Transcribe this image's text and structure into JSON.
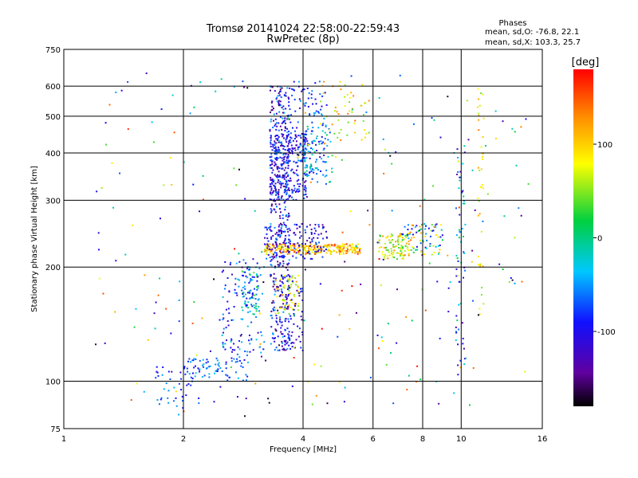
{
  "chart_data": {
    "type": "scatter",
    "title": "Tromsø 20141024 22:58:00-22:59:43",
    "subtitle": "RwPretec (8p)",
    "xlabel": "Frequency [MHz]",
    "ylabel": "Stationary phase Virtual Height [km]",
    "x_scale": "log",
    "y_scale": "log",
    "xlim": [
      1,
      16
    ],
    "ylim": [
      75,
      750
    ],
    "x_ticks": [
      1,
      2,
      4,
      6,
      8,
      10,
      16
    ],
    "y_ticks": [
      75,
      100,
      200,
      300,
      400,
      500,
      600,
      750
    ],
    "grid": true,
    "phase_stats": {
      "heading": "Phases",
      "o_line": "mean, sd,O: -76.8, 22.1",
      "x_line": "mean, sd,X: 103.3, 25.7"
    },
    "colorbar": {
      "label": "[deg]",
      "min": -180,
      "max": 180,
      "ticks": [
        100,
        0,
        -100
      ],
      "tick_labels": [
        "100",
        "0",
        "-100"
      ]
    },
    "clusters": [
      {
        "fmin": 1.7,
        "fmax": 2.2,
        "hmin": 85,
        "hmax": 110,
        "n": 40,
        "phase": [
          -110,
          -40
        ]
      },
      {
        "fmin": 2.0,
        "fmax": 2.9,
        "hmin": 100,
        "hmax": 115,
        "n": 70,
        "phase": [
          -100,
          -30
        ]
      },
      {
        "fmin": 2.5,
        "fmax": 3.2,
        "hmin": 112,
        "hmax": 210,
        "n": 130,
        "phase": [
          -130,
          -20
        ]
      },
      {
        "fmin": 2.8,
        "fmax": 3.1,
        "hmin": 150,
        "hmax": 200,
        "n": 60,
        "phase": [
          -100,
          40
        ]
      },
      {
        "fmin": 3.3,
        "fmax": 3.7,
        "hmin": 120,
        "hmax": 600,
        "n": 420,
        "phase": [
          -160,
          -40
        ]
      },
      {
        "fmin": 3.3,
        "fmax": 4.1,
        "hmin": 300,
        "hmax": 450,
        "n": 240,
        "phase": [
          -140,
          -60
        ]
      },
      {
        "fmin": 3.6,
        "fmax": 4.6,
        "hmin": 350,
        "hmax": 620,
        "n": 130,
        "phase": [
          -120,
          -40
        ]
      },
      {
        "fmin": 4.0,
        "fmax": 4.7,
        "hmin": 330,
        "hmax": 480,
        "n": 70,
        "phase": [
          -80,
          20
        ]
      },
      {
        "fmin": 3.2,
        "fmax": 5.6,
        "hmin": 216,
        "hmax": 230,
        "n": 260,
        "phase": [
          60,
          160
        ]
      },
      {
        "fmin": 3.2,
        "fmax": 4.6,
        "hmin": 210,
        "hmax": 260,
        "n": 140,
        "phase": [
          -150,
          -60
        ]
      },
      {
        "fmin": 3.4,
        "fmax": 3.9,
        "hmin": 150,
        "hmax": 190,
        "n": 60,
        "phase": [
          40,
          120
        ]
      },
      {
        "fmin": 3.6,
        "fmax": 4.0,
        "hmin": 120,
        "hmax": 190,
        "n": 60,
        "phase": [
          -130,
          -70
        ]
      },
      {
        "fmin": 6.2,
        "fmax": 7.4,
        "hmin": 210,
        "hmax": 245,
        "n": 90,
        "phase": [
          20,
          130
        ]
      },
      {
        "fmin": 7.0,
        "fmax": 9.0,
        "hmin": 215,
        "hmax": 260,
        "n": 90,
        "phase": [
          -120,
          140
        ]
      },
      {
        "fmin": 9.7,
        "fmax": 10.3,
        "hmin": 110,
        "hmax": 420,
        "n": 60,
        "phase": [
          -140,
          20
        ]
      },
      {
        "fmin": 11.0,
        "fmax": 11.4,
        "hmin": 150,
        "hmax": 600,
        "n": 40,
        "phase": [
          40,
          140
        ]
      },
      {
        "fmin": 4.4,
        "fmax": 5.9,
        "hmin": 420,
        "hmax": 620,
        "n": 50,
        "phase": [
          40,
          140
        ]
      },
      {
        "fmin": 1.2,
        "fmax": 15,
        "hmin": 80,
        "hmax": 650,
        "n": 260,
        "phase": [
          -180,
          180
        ]
      }
    ]
  }
}
